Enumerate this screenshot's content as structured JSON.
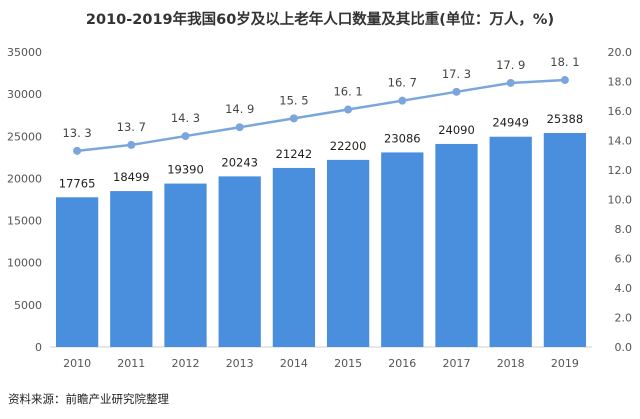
{
  "chart_data": {
    "type": "bar",
    "title": "2010-2019年我国60岁及以上老年人口数量及其比重(单位：万人，%)",
    "categories": [
      "2010",
      "2011",
      "2012",
      "2013",
      "2014",
      "2015",
      "2016",
      "2017",
      "2018",
      "2019"
    ],
    "series": [
      {
        "type": "bar",
        "axis": "left",
        "values": [
          17765,
          18499,
          19390,
          20243,
          21242,
          22200,
          23086,
          24090,
          24949,
          25388
        ],
        "color": "#4a8fdd"
      },
      {
        "type": "line",
        "axis": "right",
        "values": [
          13.3,
          13.7,
          14.3,
          14.9,
          15.5,
          16.1,
          16.7,
          17.3,
          17.9,
          18.1
        ],
        "labels": [
          "13. 3",
          "13. 7",
          "14. 3",
          "14. 9",
          "15. 5",
          "16. 1",
          "16. 7",
          "17. 3",
          "17. 9",
          "18. 1"
        ],
        "color": "#7ba6dc"
      }
    ],
    "ylim_left": [
      0,
      35000
    ],
    "yticks_left": [
      "0",
      "5000",
      "10000",
      "15000",
      "20000",
      "25000",
      "30000",
      "35000"
    ],
    "ylim_right": [
      0,
      20
    ],
    "yticks_right": [
      "0.0",
      "2.0",
      "4.0",
      "6.0",
      "8.0",
      "10.0",
      "12.0",
      "14.0",
      "16.0",
      "18.0",
      "20.0"
    ],
    "grid": false,
    "legend": "none"
  },
  "source": "资料来源：前瞻产业研究院整理"
}
